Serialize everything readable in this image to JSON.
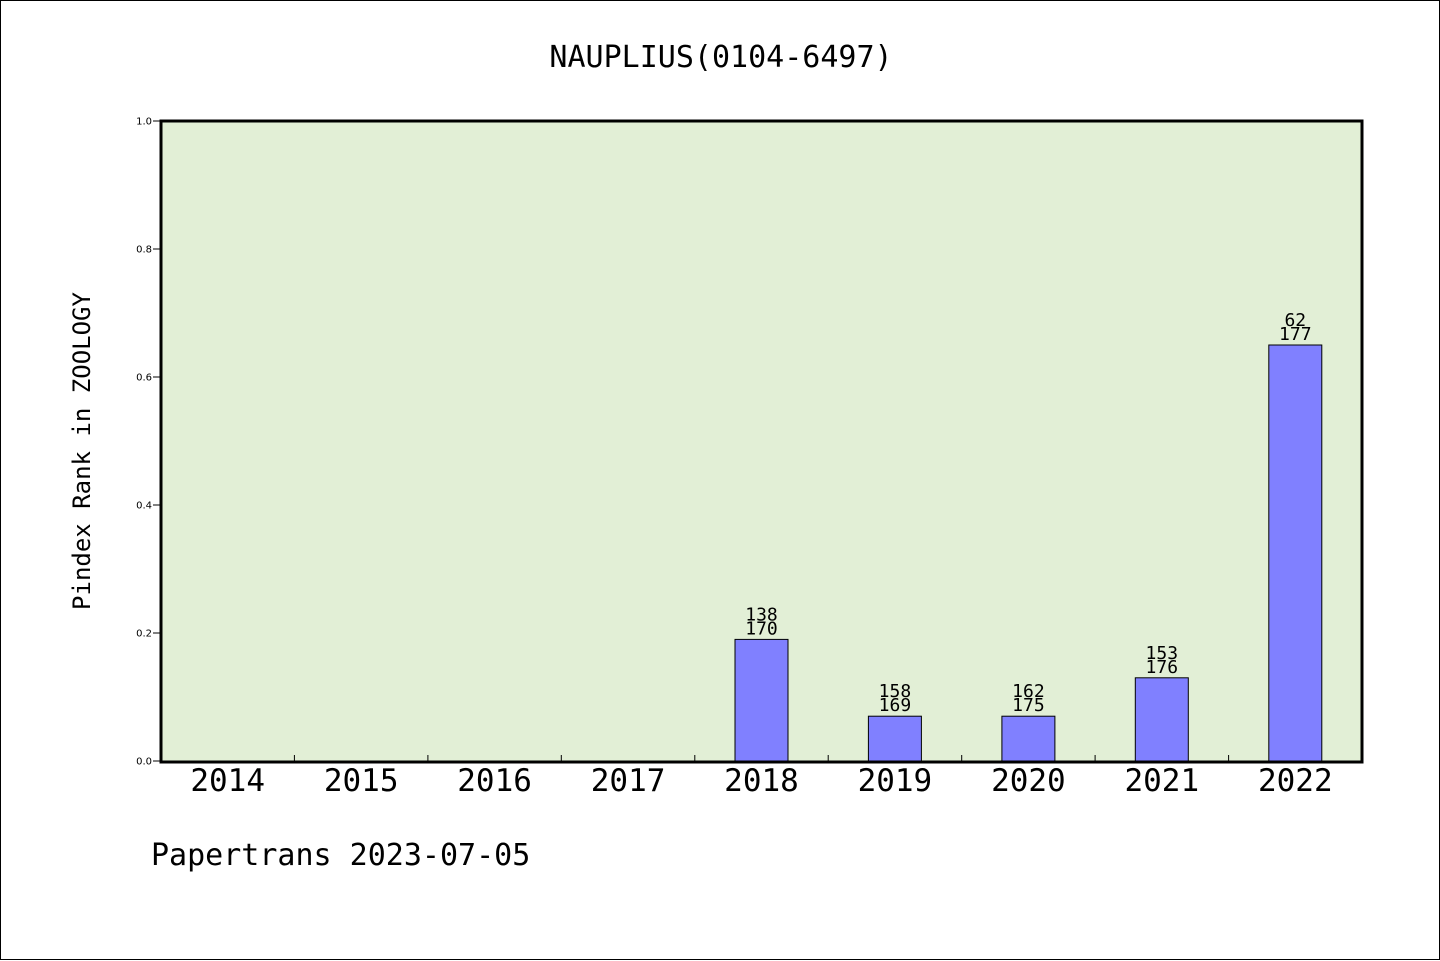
{
  "chart_data": {
    "type": "bar",
    "title": "NAUPLIUS(0104-6497)",
    "xlabel": "",
    "ylabel": "Pindex Rank in ZOOLOGY",
    "categories": [
      "2014",
      "2015",
      "2016",
      "2017",
      "2018",
      "2019",
      "2020",
      "2021",
      "2022"
    ],
    "values": [
      0,
      0,
      0,
      0,
      0.19,
      0.07,
      0.07,
      0.13,
      0.65
    ],
    "bar_labels": [
      [
        "",
        ""
      ],
      [
        "",
        ""
      ],
      [
        "",
        ""
      ],
      [
        "",
        ""
      ],
      [
        "138",
        "170"
      ],
      [
        "158",
        "169"
      ],
      [
        "162",
        "175"
      ],
      [
        "153",
        "176"
      ],
      [
        "62",
        "177"
      ]
    ],
    "ylim": [
      0,
      1.0
    ],
    "yticks": [
      "0.0",
      "0.2",
      "0.4",
      "0.6",
      "0.8",
      "1.0"
    ],
    "ytick_values": [
      0,
      0.2,
      0.4,
      0.6,
      0.8,
      1.0
    ],
    "grid": false,
    "colors": {
      "plot_background": "#e2efd6",
      "bar_fill": "#8080ff",
      "bar_stroke": "#000000"
    }
  },
  "footer": "Papertrans 2023-07-05"
}
